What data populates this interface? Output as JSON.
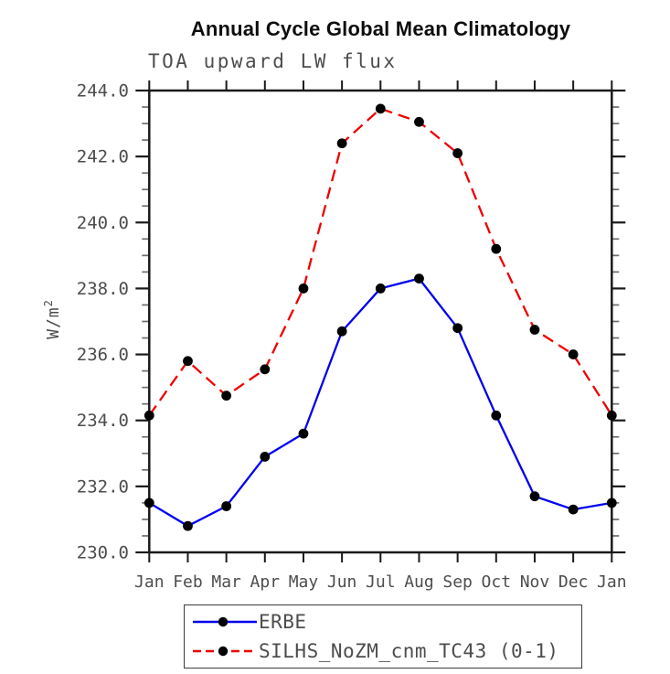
{
  "chart_data": {
    "type": "line",
    "title": "Annual Cycle Global Mean Climatology",
    "subtitle": "TOA upward LW flux",
    "ylabel_base": "W/m",
    "ylabel_exp": "2",
    "categories": [
      "Jan",
      "Feb",
      "Mar",
      "Apr",
      "May",
      "Jun",
      "Jul",
      "Aug",
      "Sep",
      "Oct",
      "Nov",
      "Dec",
      "Jan"
    ],
    "ylim": [
      230.0,
      244.0
    ],
    "ytick_step": 2.0,
    "yminor_step": 0.5,
    "ytick_labels": [
      "244.0",
      "242.0",
      "240.0",
      "238.0",
      "236.0",
      "234.0",
      "232.0",
      "230.0"
    ],
    "grid": false,
    "legend_position": "bottom",
    "marker": "black-dot",
    "series": [
      {
        "name": "ERBE",
        "color": "#0000ee",
        "style": "solid",
        "values": [
          231.5,
          230.8,
          231.4,
          232.9,
          233.6,
          236.7,
          238.0,
          238.3,
          236.8,
          234.15,
          231.7,
          231.3,
          231.5
        ]
      },
      {
        "name": "SILHS_NoZM_cnm_TC43 (0-1)",
        "color": "#ee0000",
        "style": "dashed",
        "values": [
          234.15,
          235.8,
          234.75,
          235.55,
          238.0,
          242.4,
          243.45,
          243.05,
          242.1,
          239.2,
          236.75,
          236.0,
          234.15
        ]
      }
    ]
  },
  "colors": {
    "axis": "#1a1a1a",
    "tick_label": "#4d4d4d",
    "minor_tick": "#6e6e6e",
    "marker_fill": "#000000",
    "legend_border": "#3c3c3c"
  }
}
